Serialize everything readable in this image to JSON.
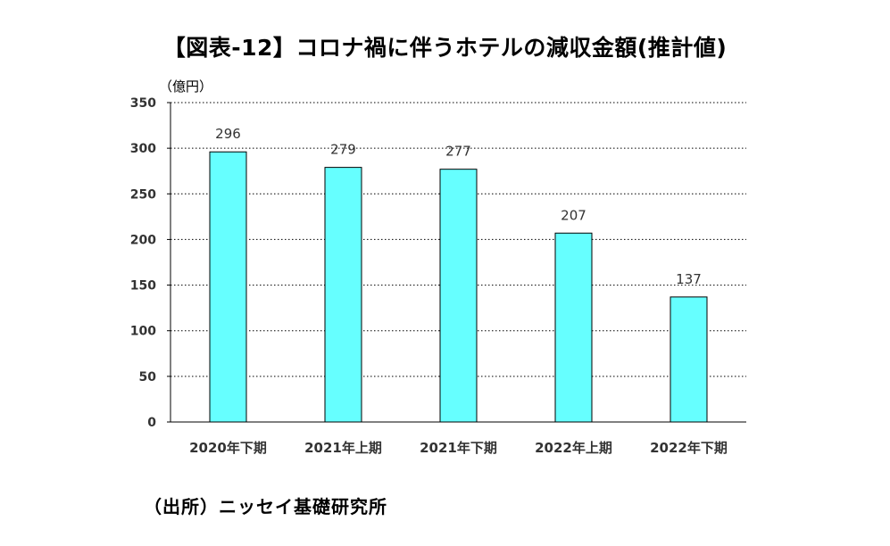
{
  "chart_data": {
    "type": "bar",
    "title": "【図表-12】コロナ禍に伴うホテルの減収金額(推計値)",
    "unit_label": "（億円）",
    "source": "（出所）ニッセイ基礎研究所",
    "categories": [
      "2020年下期",
      "2021年上期",
      "2021年下期",
      "2022年上期",
      "2022年下期"
    ],
    "values": [
      296,
      279,
      277,
      207,
      137
    ],
    "data_labels": [
      "296",
      "279",
      "277",
      "207",
      "137"
    ],
    "ylim": [
      0,
      350
    ],
    "yticks": [
      0,
      50,
      100,
      150,
      200,
      250,
      300,
      350
    ],
    "ytick_labels": [
      "0",
      "50",
      "100",
      "150",
      "200",
      "250",
      "300",
      "350"
    ],
    "grid": "horizontal dotted",
    "bar_color": "#66FFFF",
    "bar_edge_color": "#000000"
  }
}
